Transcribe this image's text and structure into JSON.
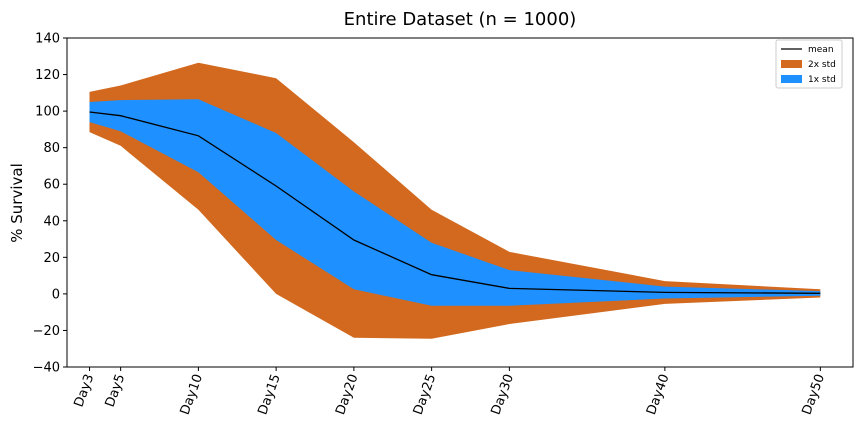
{
  "chart_data": {
    "type": "area",
    "title": "Entire Dataset (n = 1000)",
    "xlabel": "",
    "ylabel": "% Survival",
    "x_days": [
      3,
      5,
      10,
      15,
      20,
      25,
      30,
      40,
      50
    ],
    "categories": [
      "Day3",
      "Day5",
      "Day10",
      "Day15",
      "Day20",
      "Day25",
      "Day30",
      "Day40",
      "Day50"
    ],
    "ylim": [
      -40,
      140
    ],
    "yticks": [
      -40,
      -20,
      0,
      20,
      40,
      60,
      80,
      100,
      120,
      140
    ],
    "grid": false,
    "legend_position": "top-right",
    "series": [
      {
        "name": "mean",
        "kind": "line",
        "color": "#000000",
        "values": [
          99.5,
          97.5,
          86.5,
          59,
          29.5,
          10.5,
          3,
          0.8,
          0.3
        ]
      },
      {
        "name": "2x std",
        "kind": "band",
        "color": "#d2691e",
        "upper": [
          110.5,
          114,
          126.5,
          118,
          83,
          46,
          23,
          7,
          2.5
        ],
        "lower": [
          88.5,
          81,
          46,
          0,
          -24,
          -24.5,
          -16.5,
          -5.5,
          -2
        ]
      },
      {
        "name": "1x std",
        "kind": "band",
        "color": "#1e90ff",
        "upper": [
          105,
          106,
          106.5,
          88,
          56,
          28,
          13,
          4,
          1.5
        ],
        "lower": [
          94,
          89,
          66.5,
          29.5,
          2.5,
          -6.5,
          -6.5,
          -2.5,
          -1
        ]
      }
    ]
  }
}
